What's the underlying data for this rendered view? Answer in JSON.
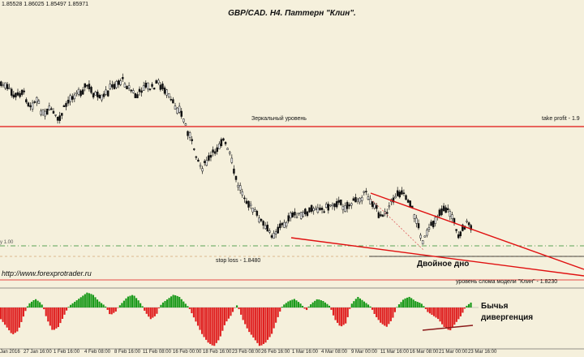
{
  "header": {
    "ohlc": "1.85528 1.86025 1.85497 1.85971",
    "title": "GBP/CAD. H4. Паттерн \"Клин\"."
  },
  "annotations": {
    "mirror_level": "Зеркальный уровень",
    "take_profit": "take profit - 1.9",
    "stop_loss": "stop loss - 1.8480",
    "double_bottom": "Двойное дно",
    "breakout_level": "уровень слома модели \"Клин\" - 1.8230",
    "website": "http://www.forexprotrader.ru",
    "level_tag": "y 1.00",
    "bullish_line1": "Бычья",
    "bullish_line2": "дивергенция"
  },
  "x_axis": {
    "ticks": [
      "Jan 2016",
      "27 Jan 16:00",
      "1 Feb 16:00",
      "4 Feb 08:00",
      "8 Feb 16:00",
      "11 Feb 08:00",
      "16 Feb 00:00",
      "18 Feb 16:00",
      "23 Feb 08:00",
      "26 Feb 16:00",
      "1 Mar 16:00",
      "4 Mar 08:00",
      "9 Mar 00:00",
      "11 Mar 16:00",
      "16 Mar 08:00",
      "21 Mar 00:00",
      "23 Mar 16:00"
    ]
  },
  "colors": {
    "background": "#f5f0dc",
    "candle": "#111111",
    "level_line": "#e01010",
    "wedge": "#e01010",
    "hist_up": "#1a9a1a",
    "hist_down": "#e02020",
    "dashed_green": "#2a8a2a",
    "dotted_red": "#e06060",
    "divergence": "#8b1a1a"
  },
  "price_path": [
    0.04,
    0.07,
    0.12,
    0.08,
    0.17,
    0.14,
    0.24,
    0.19,
    0.27,
    0.17,
    0.11,
    0.09,
    0.05,
    0.1,
    0.14,
    0.08,
    0.04,
    0.02,
    0.07,
    0.12,
    0.05,
    0.07,
    0.03,
    0.09,
    0.16,
    0.2,
    0.31,
    0.43,
    0.55,
    0.5,
    0.44,
    0.37,
    0.47,
    0.64,
    0.71,
    0.79,
    0.84,
    0.91,
    0.95,
    0.9,
    0.87,
    0.82,
    0.84,
    0.81,
    0.78,
    0.8,
    0.77,
    0.75,
    0.78,
    0.76,
    0.73,
    0.7,
    0.76,
    0.83,
    0.8,
    0.72,
    0.68,
    0.74,
    0.85,
    0.99,
    0.91,
    0.83,
    0.78,
    0.83,
    0.95,
    0.88,
    0.91
  ],
  "histogram": [
    -0.3,
    -0.5,
    -0.7,
    -0.6,
    -0.2,
    0.2,
    0.4,
    0.2,
    -0.3,
    -0.6,
    -0.5,
    -0.2,
    0.1,
    0.3,
    0.5,
    0.7,
    0.6,
    0.3,
    0.1,
    -0.2,
    -0.1,
    0.2,
    0.5,
    0.6,
    0.3,
    -0.1,
    -0.3,
    -0.2,
    0.2,
    0.4,
    0.6,
    0.5,
    0.2,
    -0.1,
    -0.4,
    -0.7,
    -0.9,
    -1.0,
    -0.8,
    -0.4,
    -0.2,
    0.1,
    -0.3,
    -0.6,
    -0.8,
    -1.0,
    -0.9,
    -0.7,
    -0.3,
    0.1,
    0.3,
    0.4,
    0.2,
    -0.1,
    0.2,
    0.4,
    0.3,
    0.1,
    -0.3,
    -0.5,
    -0.4,
    0.2,
    0.5,
    0.3,
    0.1,
    -0.2,
    -0.4,
    -0.5,
    -0.3,
    0.1,
    0.4,
    0.5,
    0.3,
    0.2,
    -0.1,
    -0.2,
    -0.3,
    -0.5,
    -0.6,
    -0.4,
    -0.2,
    0.1,
    0.3
  ]
}
